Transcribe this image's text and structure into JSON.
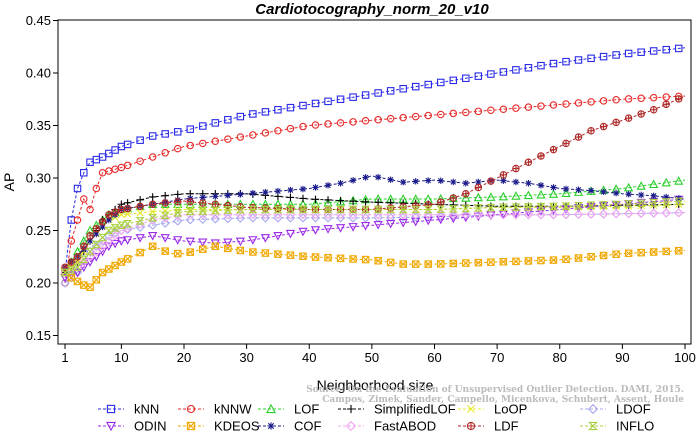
{
  "chart_data": {
    "type": "line",
    "title": "Cardiotocography_norm_20_v10",
    "xlabel": "Neighborhood size",
    "ylabel": "AP",
    "xlim": [
      1,
      100
    ],
    "ylim": [
      0.15,
      0.45
    ],
    "xticks": [
      1,
      10,
      20,
      30,
      40,
      50,
      60,
      70,
      80,
      90,
      100
    ],
    "yticks": [
      "0.15",
      "0.20",
      "0.25",
      "0.30",
      "0.35",
      "0.40",
      "0.45"
    ],
    "credit_lines": [
      "Source: On the Evaluation of Unsupervised Outlier Detection. DAMI, 2015.",
      "Campos, Zimek, Sander, Campello, Micenkova, Schubert, Assent, Houle"
    ],
    "series": [
      {
        "name": "kNN",
        "color": "#2a2ae8",
        "marker": "square",
        "points": [
          [
            1,
            0.21
          ],
          [
            2,
            0.26
          ],
          [
            3,
            0.29
          ],
          [
            4,
            0.305
          ],
          [
            5,
            0.315
          ],
          [
            7,
            0.32
          ],
          [
            10,
            0.33
          ],
          [
            15,
            0.34
          ],
          [
            20,
            0.345
          ],
          [
            30,
            0.36
          ],
          [
            40,
            0.37
          ],
          [
            50,
            0.38
          ],
          [
            60,
            0.39
          ],
          [
            70,
            0.4
          ],
          [
            80,
            0.41
          ],
          [
            90,
            0.418
          ],
          [
            100,
            0.424
          ]
        ]
      },
      {
        "name": "kNNW",
        "color": "#e82a2a",
        "marker": "circle",
        "points": [
          [
            1,
            0.2
          ],
          [
            2,
            0.24
          ],
          [
            3,
            0.26
          ],
          [
            4,
            0.28
          ],
          [
            5,
            0.27
          ],
          [
            6,
            0.29
          ],
          [
            7,
            0.305
          ],
          [
            10,
            0.31
          ],
          [
            15,
            0.32
          ],
          [
            20,
            0.33
          ],
          [
            30,
            0.34
          ],
          [
            40,
            0.35
          ],
          [
            50,
            0.355
          ],
          [
            60,
            0.36
          ],
          [
            70,
            0.365
          ],
          [
            80,
            0.37
          ],
          [
            90,
            0.375
          ],
          [
            100,
            0.378
          ]
        ]
      },
      {
        "name": "LOF",
        "color": "#2ad02a",
        "marker": "triangle",
        "points": [
          [
            1,
            0.21
          ],
          [
            3,
            0.23
          ],
          [
            5,
            0.25
          ],
          [
            8,
            0.265
          ],
          [
            10,
            0.27
          ],
          [
            15,
            0.275
          ],
          [
            20,
            0.275
          ],
          [
            30,
            0.275
          ],
          [
            40,
            0.275
          ],
          [
            50,
            0.28
          ],
          [
            60,
            0.28
          ],
          [
            70,
            0.282
          ],
          [
            80,
            0.285
          ],
          [
            90,
            0.29
          ],
          [
            100,
            0.298
          ]
        ]
      },
      {
        "name": "SimplifiedLOF",
        "color": "#000000",
        "marker": "plus",
        "points": [
          [
            1,
            0.21
          ],
          [
            3,
            0.22
          ],
          [
            5,
            0.24
          ],
          [
            7,
            0.26
          ],
          [
            10,
            0.275
          ],
          [
            15,
            0.282
          ],
          [
            20,
            0.285
          ],
          [
            30,
            0.285
          ],
          [
            40,
            0.28
          ],
          [
            50,
            0.277
          ],
          [
            60,
            0.275
          ],
          [
            70,
            0.273
          ],
          [
            80,
            0.273
          ],
          [
            90,
            0.274
          ],
          [
            100,
            0.275
          ]
        ]
      },
      {
        "name": "LoOP",
        "color": "#e8e82a",
        "marker": "x",
        "points": [
          [
            1,
            0.21
          ],
          [
            3,
            0.22
          ],
          [
            5,
            0.24
          ],
          [
            8,
            0.26
          ],
          [
            10,
            0.265
          ],
          [
            15,
            0.268
          ],
          [
            20,
            0.27
          ],
          [
            30,
            0.27
          ],
          [
            40,
            0.27
          ],
          [
            50,
            0.27
          ],
          [
            60,
            0.27
          ],
          [
            70,
            0.272
          ],
          [
            80,
            0.272
          ],
          [
            90,
            0.273
          ],
          [
            100,
            0.275
          ]
        ]
      },
      {
        "name": "LDOF",
        "color": "#a8a8f0",
        "marker": "diamond",
        "points": [
          [
            1,
            0.2
          ],
          [
            3,
            0.21
          ],
          [
            5,
            0.23
          ],
          [
            8,
            0.245
          ],
          [
            10,
            0.25
          ],
          [
            15,
            0.255
          ],
          [
            20,
            0.26
          ],
          [
            30,
            0.262
          ],
          [
            40,
            0.262
          ],
          [
            50,
            0.262
          ],
          [
            60,
            0.263
          ],
          [
            70,
            0.265
          ],
          [
            80,
            0.265
          ],
          [
            90,
            0.266
          ],
          [
            100,
            0.267
          ]
        ]
      },
      {
        "name": "ODIN",
        "color": "#9a2ae8",
        "marker": "triangle-down",
        "points": [
          [
            1,
            0.205
          ],
          [
            3,
            0.21
          ],
          [
            5,
            0.22
          ],
          [
            8,
            0.235
          ],
          [
            10,
            0.24
          ],
          [
            15,
            0.245
          ],
          [
            20,
            0.24
          ],
          [
            25,
            0.238
          ],
          [
            30,
            0.24
          ],
          [
            40,
            0.25
          ],
          [
            50,
            0.255
          ],
          [
            60,
            0.26
          ],
          [
            70,
            0.265
          ],
          [
            80,
            0.27
          ],
          [
            90,
            0.275
          ],
          [
            100,
            0.28
          ]
        ]
      },
      {
        "name": "KDEOS",
        "color": "#f0a800",
        "marker": "square-x",
        "points": [
          [
            1,
            0.21
          ],
          [
            2,
            0.205
          ],
          [
            4,
            0.198
          ],
          [
            5,
            0.196
          ],
          [
            7,
            0.21
          ],
          [
            10,
            0.22
          ],
          [
            15,
            0.235
          ],
          [
            18,
            0.228
          ],
          [
            20,
            0.228
          ],
          [
            25,
            0.235
          ],
          [
            30,
            0.23
          ],
          [
            40,
            0.225
          ],
          [
            50,
            0.222
          ],
          [
            55,
            0.218
          ],
          [
            60,
            0.218
          ],
          [
            70,
            0.22
          ],
          [
            80,
            0.222
          ],
          [
            90,
            0.228
          ],
          [
            100,
            0.231
          ]
        ]
      },
      {
        "name": "COF",
        "color": "#1a1a8a",
        "marker": "star",
        "points": [
          [
            1,
            0.215
          ],
          [
            3,
            0.225
          ],
          [
            5,
            0.24
          ],
          [
            8,
            0.26
          ],
          [
            10,
            0.27
          ],
          [
            15,
            0.275
          ],
          [
            20,
            0.28
          ],
          [
            30,
            0.285
          ],
          [
            40,
            0.29
          ],
          [
            45,
            0.295
          ],
          [
            50,
            0.302
          ],
          [
            55,
            0.296
          ],
          [
            60,
            0.298
          ],
          [
            65,
            0.295
          ],
          [
            70,
            0.298
          ],
          [
            75,
            0.295
          ],
          [
            80,
            0.29
          ],
          [
            85,
            0.288
          ],
          [
            90,
            0.285
          ],
          [
            95,
            0.283
          ],
          [
            100,
            0.28
          ]
        ]
      },
      {
        "name": "FastABOD",
        "color": "#f0a8f0",
        "marker": "diamond",
        "points": [
          [
            1,
            0.21
          ],
          [
            3,
            0.215
          ],
          [
            5,
            0.225
          ],
          [
            8,
            0.24
          ],
          [
            10,
            0.25
          ],
          [
            15,
            0.26
          ],
          [
            20,
            0.265
          ],
          [
            30,
            0.265
          ],
          [
            40,
            0.265
          ],
          [
            50,
            0.265
          ],
          [
            60,
            0.265
          ],
          [
            70,
            0.265
          ],
          [
            80,
            0.265
          ],
          [
            90,
            0.266
          ],
          [
            100,
            0.267
          ]
        ]
      },
      {
        "name": "LDF",
        "color": "#b02a2a",
        "marker": "circle-plus",
        "points": [
          [
            1,
            0.215
          ],
          [
            3,
            0.225
          ],
          [
            5,
            0.245
          ],
          [
            8,
            0.265
          ],
          [
            10,
            0.27
          ],
          [
            15,
            0.275
          ],
          [
            20,
            0.278
          ],
          [
            30,
            0.272
          ],
          [
            40,
            0.27
          ],
          [
            50,
            0.27
          ],
          [
            60,
            0.275
          ],
          [
            65,
            0.285
          ],
          [
            70,
            0.3
          ],
          [
            75,
            0.315
          ],
          [
            80,
            0.33
          ],
          [
            85,
            0.345
          ],
          [
            90,
            0.355
          ],
          [
            95,
            0.365
          ],
          [
            100,
            0.378
          ]
        ]
      },
      {
        "name": "INFLO",
        "color": "#a8d040",
        "marker": "hourglass",
        "points": [
          [
            1,
            0.21
          ],
          [
            3,
            0.215
          ],
          [
            5,
            0.23
          ],
          [
            8,
            0.25
          ],
          [
            10,
            0.255
          ],
          [
            15,
            0.262
          ],
          [
            20,
            0.268
          ],
          [
            30,
            0.27
          ],
          [
            40,
            0.27
          ],
          [
            50,
            0.27
          ],
          [
            60,
            0.27
          ],
          [
            70,
            0.272
          ],
          [
            80,
            0.273
          ],
          [
            90,
            0.275
          ],
          [
            100,
            0.278
          ]
        ]
      }
    ],
    "legend_order": [
      "kNN",
      "kNNW",
      "LOF",
      "SimplifiedLOF",
      "LoOP",
      "LDOF",
      "ODIN",
      "KDEOS",
      "COF",
      "FastABOD",
      "LDF",
      "INFLO"
    ],
    "legend_placement": "bottom"
  }
}
